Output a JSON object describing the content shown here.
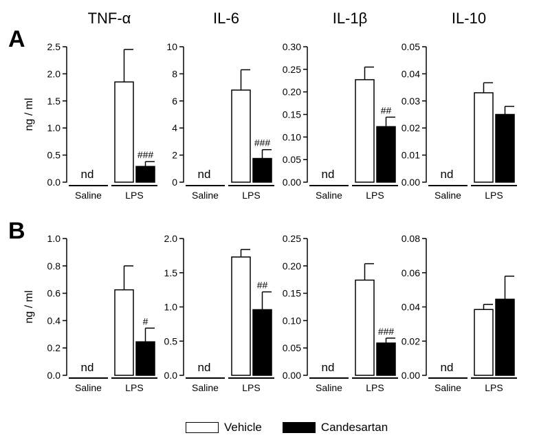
{
  "chart_data": {
    "type": "bar",
    "panels": [
      "A",
      "B"
    ],
    "columns": [
      "TNF-α",
      "IL-6",
      "IL-1β",
      "IL-10"
    ],
    "ylabel": "ng / ml",
    "group_labels": [
      "Saline",
      "LPS"
    ],
    "nd_label": "nd",
    "legend": {
      "placement": "bottom",
      "entries": [
        {
          "name": "Vehicle",
          "color": "#ffffff"
        },
        {
          "name": "Candesartan",
          "color": "#000000"
        }
      ]
    },
    "charts": [
      {
        "panel": "A",
        "title": "TNF-α",
        "ylim": [
          0,
          2.5
        ],
        "yticks": [
          "0.0",
          "0.5",
          "1.0",
          "1.5",
          "2.0",
          "2.5"
        ],
        "lps": {
          "vehicle": 1.85,
          "vehicle_error": 0.6,
          "candesartan": 0.29,
          "candesartan_error": 0.09
        },
        "annotation": "###"
      },
      {
        "panel": "A",
        "title": "IL-6",
        "ylim": [
          0,
          10
        ],
        "yticks": [
          "0",
          "2",
          "4",
          "6",
          "8",
          "10"
        ],
        "lps": {
          "vehicle": 6.8,
          "vehicle_error": 1.5,
          "candesartan": 1.75,
          "candesartan_error": 0.65
        },
        "annotation": "###"
      },
      {
        "panel": "A",
        "title": "IL-1β",
        "ylim": [
          0,
          0.3
        ],
        "yticks": [
          "0.00",
          "0.05",
          "0.10",
          "0.15",
          "0.20",
          "0.25",
          "0.30"
        ],
        "lps": {
          "vehicle": 0.227,
          "vehicle_error": 0.028,
          "candesartan": 0.123,
          "candesartan_error": 0.021
        },
        "annotation": "##"
      },
      {
        "panel": "A",
        "title": "IL-10",
        "ylim": [
          0,
          0.05
        ],
        "yticks": [
          "0.00",
          "0.01",
          "0.02",
          "0.03",
          "0.04",
          "0.05"
        ],
        "lps": {
          "vehicle": 0.033,
          "vehicle_error": 0.0037,
          "candesartan": 0.025,
          "candesartan_error": 0.003
        },
        "annotation": ""
      },
      {
        "panel": "B",
        "title": "",
        "ylim": [
          0,
          1.0
        ],
        "yticks": [
          "0.0",
          "0.2",
          "0.4",
          "0.6",
          "0.8",
          "1.0"
        ],
        "lps": {
          "vehicle": 0.625,
          "vehicle_error": 0.175,
          "candesartan": 0.245,
          "candesartan_error": 0.1
        },
        "annotation": "#"
      },
      {
        "panel": "B",
        "title": "",
        "ylim": [
          0,
          2.0
        ],
        "yticks": [
          "0.0",
          "0.5",
          "1.0",
          "1.5",
          "2.0"
        ],
        "lps": {
          "vehicle": 1.73,
          "vehicle_error": 0.11,
          "candesartan": 0.96,
          "candesartan_error": 0.26
        },
        "annotation": "##"
      },
      {
        "panel": "B",
        "title": "",
        "ylim": [
          0,
          0.25
        ],
        "yticks": [
          "0.00",
          "0.05",
          "0.10",
          "0.15",
          "0.20",
          "0.25"
        ],
        "lps": {
          "vehicle": 0.174,
          "vehicle_error": 0.03,
          "candesartan": 0.059,
          "candesartan_error": 0.009
        },
        "annotation": "###"
      },
      {
        "panel": "B",
        "title": "",
        "ylim": [
          0,
          0.08
        ],
        "yticks": [
          "0.00",
          "0.02",
          "0.04",
          "0.06",
          "0.08"
        ],
        "lps": {
          "vehicle": 0.0385,
          "vehicle_error": 0.003,
          "candesartan": 0.0445,
          "candesartan_error": 0.0135
        },
        "annotation": ""
      }
    ]
  }
}
